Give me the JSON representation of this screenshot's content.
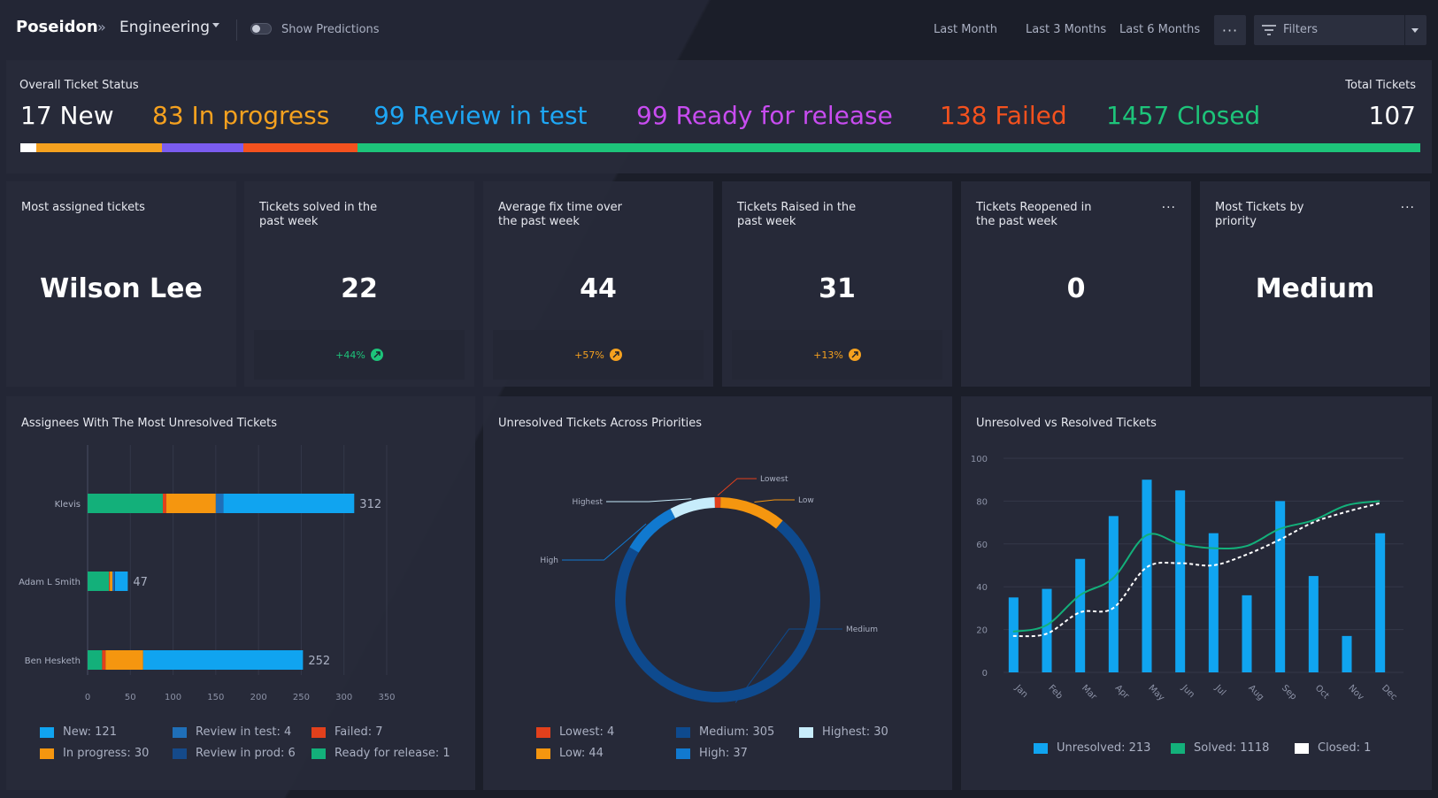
{
  "topbar": {
    "brand": "Poseidon",
    "separator": "»",
    "crumb": "Engineering",
    "toggle_label": "Show Predictions",
    "ranges": [
      "Last Month",
      "Last 3 Months",
      "Last 6 Months"
    ],
    "more_label": "···",
    "filters_label": "Filters"
  },
  "status": {
    "title": "Overall Ticket Status",
    "total_title": "Total Tickets",
    "total_value": "107",
    "items": [
      {
        "label": "17 New",
        "color": "#ffffff"
      },
      {
        "label": "83 In progress",
        "color": "#f5a11f"
      },
      {
        "label": "99 Review in test",
        "color": "#1ea7f5"
      },
      {
        "label": "99 Ready for release",
        "color": "#c84cf0"
      },
      {
        "label": "138 Failed",
        "color": "#f4511e"
      },
      {
        "label": "1457 Closed",
        "color": "#1dc47a"
      }
    ],
    "bar": [
      {
        "color": "#ffffff",
        "value": 17
      },
      {
        "color": "#f5a11f",
        "value": 136
      },
      {
        "color": "#7b5cf0",
        "value": 88
      },
      {
        "color": "#f4511e",
        "value": 124
      },
      {
        "color": "#1dc47a",
        "value": 1150
      }
    ]
  },
  "kpis": [
    {
      "title": "Most assigned tickets",
      "value": "Wilson Lee"
    },
    {
      "title": "Tickets solved in the past week",
      "value": "22",
      "change": "+44%",
      "change_color": "#1dc47a"
    },
    {
      "title": "Average fix time over the past week",
      "value": "44",
      "change": "+57%",
      "change_color": "#f5a11f"
    },
    {
      "title": "Tickets Raised in the past week",
      "value": "31",
      "change": "+13%",
      "change_color": "#f5a11f"
    },
    {
      "title": "Tickets Reopened in the past week",
      "value": "0",
      "more": "···"
    },
    {
      "title": "Most Tickets by priority",
      "value": "Medium",
      "more": "···"
    }
  ],
  "chart_data": [
    {
      "type": "bar",
      "orientation": "horizontal",
      "stacked": true,
      "title": "Assignees With The Most Unresolved Tickets",
      "categories": [
        "Klevis",
        "Adam L Smith",
        "Ben Hesketh"
      ],
      "totals": [
        312,
        47,
        252
      ],
      "xlim": [
        0,
        350
      ],
      "xticks": [
        0,
        50,
        100,
        150,
        200,
        250,
        300,
        350
      ],
      "series": [
        {
          "name": "Ready for release",
          "color": "#13b07a",
          "values": [
            88,
            25,
            17
          ]
        },
        {
          "name": "Failed",
          "color": "#e2401c",
          "values": [
            4,
            1,
            4
          ]
        },
        {
          "name": "In progress",
          "color": "#f5960f",
          "values": [
            58,
            3,
            44
          ]
        },
        {
          "name": "Review in test",
          "color": "#1f6fb8",
          "values": [
            9,
            2,
            0
          ]
        },
        {
          "name": "Review in prod",
          "color": "#154a8a",
          "values": [
            0,
            1,
            0
          ]
        },
        {
          "name": "New",
          "color": "#10a4f0",
          "values": [
            153,
            15,
            187
          ]
        }
      ],
      "legend": [
        "New: 121",
        "In progress: 30",
        "Review in test: 4",
        "Review in prod: 6",
        "Failed: 7",
        "Ready for release: 1"
      ],
      "legend_colors": [
        "#10a4f0",
        "#f5960f",
        "#1f6fb8",
        "#154a8a",
        "#e2401c",
        "#13b07a"
      ]
    },
    {
      "type": "pie",
      "donut": true,
      "title": "Unresolved Tickets Across Priorities",
      "labels": [
        "Lowest",
        "Low",
        "Medium",
        "High",
        "Highest"
      ],
      "values": [
        4,
        44,
        305,
        37,
        30
      ],
      "colors": [
        "#e2401c",
        "#f5960f",
        "#0e4a8e",
        "#1179cf",
        "#c7ecfb"
      ],
      "legend": [
        "Lowest: 4",
        "Low: 44",
        "Medium: 305",
        "High: 37",
        "Highest: 30"
      ]
    },
    {
      "type": "bar",
      "title": "Unresolved vs Resolved Tickets",
      "categories": [
        "Jan",
        "Feb",
        "Mar",
        "Apr",
        "May",
        "Jun",
        "Jul",
        "Aug",
        "Sep",
        "Oct",
        "Nov",
        "Dec"
      ],
      "ylim": [
        0,
        100
      ],
      "yticks": [
        0,
        20,
        40,
        60,
        80,
        100
      ],
      "series": [
        {
          "name": "Unresolved",
          "type": "bar",
          "color": "#10a4f0",
          "values": [
            35,
            39,
            53,
            73,
            90,
            85,
            65,
            36,
            80,
            45,
            17,
            65
          ]
        },
        {
          "name": "Solved",
          "type": "line",
          "color": "#13b07a",
          "values": [
            19,
            22,
            36,
            44,
            64,
            60,
            58,
            59,
            67,
            71,
            78,
            80
          ]
        },
        {
          "name": "Closed",
          "type": "line",
          "dashed": true,
          "color": "#ffffff",
          "values": [
            17,
            18,
            28,
            30,
            49,
            51,
            50,
            55,
            62,
            70,
            75,
            79
          ]
        }
      ],
      "legend": [
        "Unresolved: 213",
        "Solved: 1118",
        "Closed: 1"
      ],
      "legend_colors": [
        "#10a4f0",
        "#13b07a",
        "#ffffff"
      ]
    }
  ]
}
